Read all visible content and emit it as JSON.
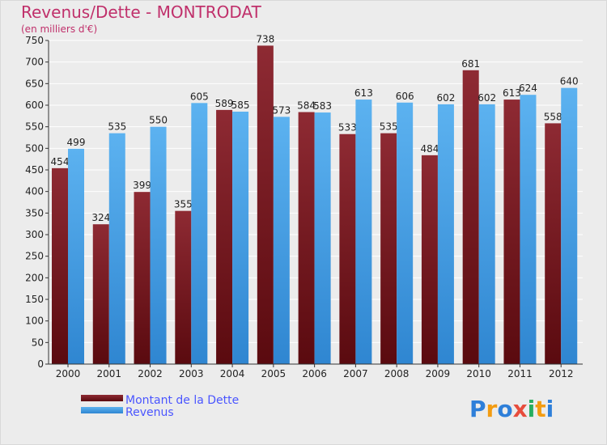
{
  "chart_data": {
    "type": "bar",
    "title": "Revenus/Dette - MONTRODAT",
    "subtitle": "(en milliers d'€)",
    "categories": [
      "2000",
      "2001",
      "2002",
      "2003",
      "2004",
      "2005",
      "2006",
      "2007",
      "2008",
      "2009",
      "2010",
      "2011",
      "2012"
    ],
    "series": [
      {
        "name": "Montant de la Dette",
        "color": "#7a1a1f",
        "values": [
          454,
          324,
          399,
          355,
          589,
          738,
          584,
          533,
          535,
          484,
          681,
          613,
          558
        ]
      },
      {
        "name": "Revenus",
        "color": "#4aa3e6",
        "values": [
          499,
          535,
          550,
          605,
          585,
          573,
          583,
          613,
          606,
          602,
          602,
          624,
          640
        ]
      }
    ],
    "ylim": [
      0,
      750
    ],
    "yticks": [
      0,
      50,
      100,
      150,
      200,
      250,
      300,
      350,
      400,
      450,
      500,
      550,
      600,
      650,
      700,
      750
    ],
    "grid": true,
    "legend": "bottom-left"
  },
  "logo": {
    "text": "Proxiti",
    "letters": [
      "P",
      "r",
      "o",
      "x",
      "i",
      "t",
      "i"
    ],
    "colors": [
      "#2e7fd9",
      "#f39c12",
      "#2e7fd9",
      "#e74c3c",
      "#27ae60",
      "#f39c12",
      "#2e7fd9"
    ]
  }
}
